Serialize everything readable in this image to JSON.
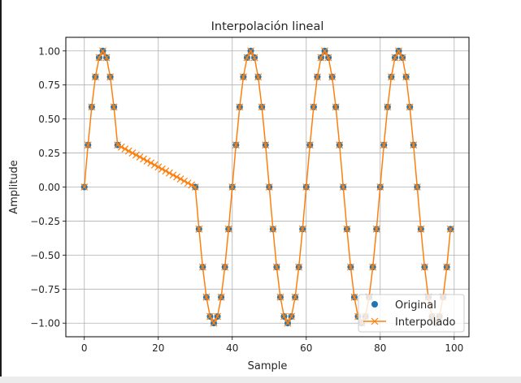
{
  "chart_data": {
    "type": "line",
    "title": "Interpolación lineal",
    "xlabel": "Sample",
    "ylabel": "Amplitude",
    "xlim": [
      -5,
      104
    ],
    "ylim": [
      -1.1,
      1.1
    ],
    "x_ticks": [
      "0",
      "20",
      "40",
      "60",
      "80",
      "100"
    ],
    "y_ticks": [
      "−1.00",
      "−0.75",
      "−0.50",
      "−0.25",
      "0.00",
      "0.25",
      "0.50",
      "0.75",
      "1.00"
    ],
    "grid": true,
    "legend_position": "lower-right",
    "series": [
      {
        "name": "Original",
        "style": "markers",
        "marker": "circle",
        "color": "#1f77b4",
        "x": [
          0,
          1,
          2,
          3,
          4,
          5,
          6,
          7,
          8,
          9,
          30,
          31,
          32,
          33,
          34,
          35,
          36,
          37,
          38,
          39,
          40,
          41,
          42,
          43,
          44,
          45,
          46,
          47,
          48,
          49,
          50,
          51,
          52,
          53,
          54,
          55,
          56,
          57,
          58,
          59,
          60,
          61,
          62,
          63,
          64,
          65,
          66,
          67,
          68,
          69,
          70,
          71,
          72,
          73,
          74,
          75,
          76,
          77,
          78,
          79,
          80,
          81,
          82,
          83,
          84,
          85,
          86,
          87,
          88,
          89,
          90,
          91,
          92,
          93,
          94,
          95,
          96,
          97,
          98,
          99
        ],
        "y": [
          0.0,
          0.309,
          0.588,
          0.809,
          0.951,
          1.0,
          0.951,
          0.809,
          0.588,
          0.309,
          0.0,
          -0.309,
          -0.588,
          -0.809,
          -0.951,
          -1.0,
          -0.951,
          -0.809,
          -0.588,
          -0.309,
          0.0,
          0.309,
          0.588,
          0.809,
          0.951,
          1.0,
          0.951,
          0.809,
          0.588,
          0.309,
          0.0,
          -0.309,
          -0.588,
          -0.809,
          -0.951,
          -1.0,
          -0.951,
          -0.809,
          -0.588,
          -0.309,
          0.0,
          0.309,
          0.588,
          0.809,
          0.951,
          1.0,
          0.951,
          0.809,
          0.588,
          0.309,
          0.0,
          -0.309,
          -0.588,
          -0.809,
          -0.951,
          -1.0,
          -0.951,
          -0.809,
          -0.588,
          -0.309,
          0.0,
          0.309,
          0.588,
          0.809,
          0.951,
          1.0,
          0.951,
          0.809,
          0.588,
          0.309,
          0.0,
          -0.309,
          -0.588,
          -0.809,
          -0.951,
          -1.0,
          -0.951,
          -0.809,
          -0.588,
          -0.309
        ]
      },
      {
        "name": "Interpolado",
        "style": "line-x-markers",
        "marker": "x",
        "color": "#ff7f0e",
        "x": [
          0,
          1,
          2,
          3,
          4,
          5,
          6,
          7,
          8,
          9,
          10,
          11,
          12,
          13,
          14,
          15,
          16,
          17,
          18,
          19,
          20,
          21,
          22,
          23,
          24,
          25,
          26,
          27,
          28,
          29,
          30,
          31,
          32,
          33,
          34,
          35,
          36,
          37,
          38,
          39,
          40,
          41,
          42,
          43,
          44,
          45,
          46,
          47,
          48,
          49,
          50,
          51,
          52,
          53,
          54,
          55,
          56,
          57,
          58,
          59,
          60,
          61,
          62,
          63,
          64,
          65,
          66,
          67,
          68,
          69,
          70,
          71,
          72,
          73,
          74,
          75,
          76,
          77,
          78,
          79,
          80,
          81,
          82,
          83,
          84,
          85,
          86,
          87,
          88,
          89,
          90,
          91,
          92,
          93,
          94,
          95,
          96,
          97,
          98,
          99
        ],
        "y": [
          0.0,
          0.309,
          0.588,
          0.809,
          0.951,
          1.0,
          0.951,
          0.809,
          0.588,
          0.309,
          0.294,
          0.28,
          0.265,
          0.25,
          0.235,
          0.221,
          0.206,
          0.191,
          0.177,
          0.162,
          0.147,
          0.132,
          0.118,
          0.103,
          0.088,
          0.074,
          0.059,
          0.044,
          0.029,
          0.015,
          0.0,
          -0.309,
          -0.588,
          -0.809,
          -0.951,
          -1.0,
          -0.951,
          -0.809,
          -0.588,
          -0.309,
          0.0,
          0.309,
          0.588,
          0.809,
          0.951,
          1.0,
          0.951,
          0.809,
          0.588,
          0.309,
          0.0,
          -0.309,
          -0.588,
          -0.809,
          -0.951,
          -1.0,
          -0.951,
          -0.809,
          -0.588,
          -0.309,
          0.0,
          0.309,
          0.588,
          0.809,
          0.951,
          1.0,
          0.951,
          0.809,
          0.588,
          0.309,
          0.0,
          -0.309,
          -0.588,
          -0.809,
          -0.951,
          -1.0,
          -0.951,
          -0.809,
          -0.588,
          -0.309,
          0.0,
          0.309,
          0.588,
          0.809,
          0.951,
          1.0,
          0.951,
          0.809,
          0.588,
          0.309,
          0.0,
          -0.309,
          -0.588,
          -0.809,
          -0.951,
          -1.0,
          -0.951,
          -0.809,
          -0.588,
          -0.309
        ]
      }
    ]
  }
}
